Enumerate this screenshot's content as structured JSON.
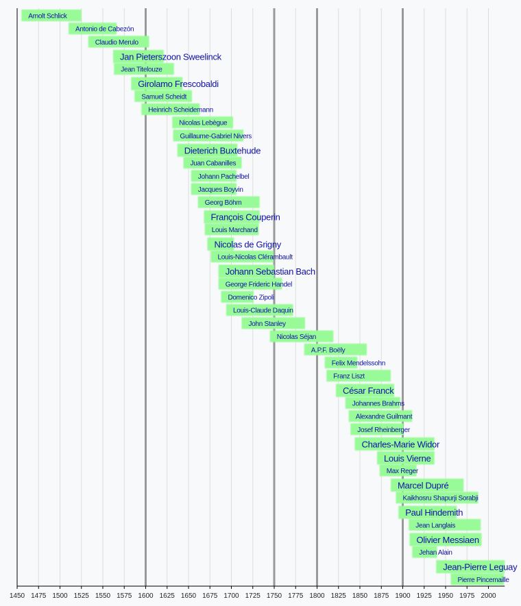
{
  "chart_data": {
    "type": "timeline",
    "title": "",
    "xlabel": "",
    "xlim": [
      1450,
      2019
    ],
    "x_ticks": [
      1450,
      1475,
      1500,
      1525,
      1550,
      1575,
      1600,
      1625,
      1650,
      1675,
      1700,
      1725,
      1750,
      1775,
      1800,
      1825,
      1850,
      1875,
      1900,
      1925,
      1950,
      1975,
      2000
    ],
    "major_gridlines": [
      1600,
      1750,
      1800,
      1900
    ],
    "grid": true,
    "bar_color": "#98fb98",
    "label_color": "#1010a8",
    "bars": [
      {
        "name": "Arnolt Schlick",
        "start": 1455,
        "end": 1525,
        "emphasis": false
      },
      {
        "name": "Antonio de Cabezón",
        "start": 1510,
        "end": 1566,
        "emphasis": false
      },
      {
        "name": "Claudio Merulo",
        "start": 1533,
        "end": 1604,
        "emphasis": false
      },
      {
        "name": "Jan Pieterszoon Sweelinck",
        "start": 1562,
        "end": 1621,
        "emphasis": true
      },
      {
        "name": "Jean Titelouze",
        "start": 1563,
        "end": 1633,
        "emphasis": false
      },
      {
        "name": "Girolamo Frescobaldi",
        "start": 1583,
        "end": 1643,
        "emphasis": true
      },
      {
        "name": "Samuel Scheidt",
        "start": 1587,
        "end": 1654,
        "emphasis": false
      },
      {
        "name": "Heinrich Scheidemann",
        "start": 1595,
        "end": 1663,
        "emphasis": false
      },
      {
        "name": "Nicolas Lebègue",
        "start": 1631,
        "end": 1702,
        "emphasis": false
      },
      {
        "name": "Guillaume-Gabriel Nivers",
        "start": 1632,
        "end": 1714,
        "emphasis": false
      },
      {
        "name": "Dieterich Buxtehude",
        "start": 1637,
        "end": 1707,
        "emphasis": true
      },
      {
        "name": "Juan Cabanilles",
        "start": 1644,
        "end": 1712,
        "emphasis": false
      },
      {
        "name": "Johann Pachelbel",
        "start": 1653,
        "end": 1706,
        "emphasis": false
      },
      {
        "name": "Jacques Boyvin",
        "start": 1653,
        "end": 1706,
        "emphasis": false
      },
      {
        "name": "Georg Böhm",
        "start": 1661,
        "end": 1733,
        "emphasis": false
      },
      {
        "name": "François Couperin",
        "start": 1668,
        "end": 1733,
        "emphasis": true
      },
      {
        "name": "Louis Marchand",
        "start": 1669,
        "end": 1732,
        "emphasis": false
      },
      {
        "name": "Nicolas de Grigny",
        "start": 1672,
        "end": 1703,
        "emphasis": true
      },
      {
        "name": "Louis-Nicolas Clérambault",
        "start": 1676,
        "end": 1749,
        "emphasis": false
      },
      {
        "name": "Johann Sebastian Bach",
        "start": 1685,
        "end": 1750,
        "emphasis": true
      },
      {
        "name": "George Frideric Handel",
        "start": 1685,
        "end": 1759,
        "emphasis": false
      },
      {
        "name": "Domenico Zipoli",
        "start": 1688,
        "end": 1726,
        "emphasis": false
      },
      {
        "name": "Louis-Claude Daquin",
        "start": 1694,
        "end": 1772,
        "emphasis": false
      },
      {
        "name": "John Stanley",
        "start": 1712,
        "end": 1786,
        "emphasis": false
      },
      {
        "name": "Nicolas Séjan",
        "start": 1745,
        "end": 1819,
        "emphasis": false
      },
      {
        "name": "A.P.F. Boëly",
        "start": 1785,
        "end": 1858,
        "emphasis": false
      },
      {
        "name": "Felix Mendelssohn",
        "start": 1809,
        "end": 1847,
        "emphasis": false
      },
      {
        "name": "Franz Liszt",
        "start": 1811,
        "end": 1886,
        "emphasis": false
      },
      {
        "name": "César Franck",
        "start": 1822,
        "end": 1890,
        "emphasis": true
      },
      {
        "name": "Johannes Brahms",
        "start": 1833,
        "end": 1897,
        "emphasis": false
      },
      {
        "name": "Alexandre Guilmant",
        "start": 1837,
        "end": 1911,
        "emphasis": false
      },
      {
        "name": "Josef Rheinberger",
        "start": 1839,
        "end": 1901,
        "emphasis": false
      },
      {
        "name": "Charles-Marie Widor",
        "start": 1844,
        "end": 1937,
        "emphasis": true
      },
      {
        "name": "Louis Vierne",
        "start": 1870,
        "end": 1937,
        "emphasis": true
      },
      {
        "name": "Max Reger",
        "start": 1873,
        "end": 1916,
        "emphasis": false
      },
      {
        "name": "Marcel Dupré",
        "start": 1886,
        "end": 1971,
        "emphasis": true
      },
      {
        "name": "Kaikhosru Shapurji Sorabji",
        "start": 1892,
        "end": 1988,
        "emphasis": false
      },
      {
        "name": "Paul Hindemith",
        "start": 1895,
        "end": 1963,
        "emphasis": true
      },
      {
        "name": "Jean Langlais",
        "start": 1907,
        "end": 1991,
        "emphasis": false
      },
      {
        "name": "Olivier Messiaen",
        "start": 1908,
        "end": 1992,
        "emphasis": true
      },
      {
        "name": "Jehan Alain",
        "start": 1911,
        "end": 1940,
        "emphasis": false
      },
      {
        "name": "Jean-Pierre Leguay",
        "start": 1939,
        "end": 2019,
        "emphasis": true
      },
      {
        "name": "Pierre Pincemaille",
        "start": 1956,
        "end": 2018,
        "emphasis": false
      }
    ]
  }
}
